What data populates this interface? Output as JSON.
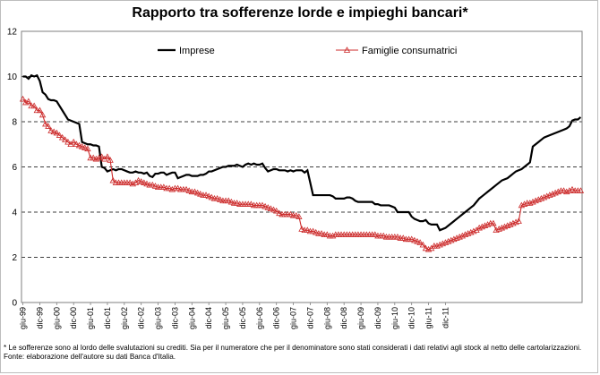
{
  "chart_data": {
    "type": "line",
    "title": "Rapporto tra sofferenze lorde e impieghi bancari*",
    "xlabel": "",
    "ylabel": "",
    "ylim": [
      0,
      12
    ],
    "yticks": [
      0,
      2,
      4,
      6,
      8,
      10,
      12
    ],
    "grid": "horizontal-dashed",
    "legend_position": "top",
    "x_tick_labels": [
      "giu-99",
      "dic-99",
      "giu-00",
      "dic-00",
      "giu-01",
      "dic-01",
      "giu-02",
      "dic-02",
      "giu-03",
      "dic-03",
      "giu-04",
      "dic-04",
      "giu-05",
      "dic-05",
      "giu-06",
      "dic-06",
      "giu-07",
      "dic-07",
      "giu-08",
      "dic-08",
      "giu-09",
      "dic-09",
      "giu-10",
      "dic-10",
      "giu-11",
      "dic-11"
    ],
    "x_months": {
      "start": "giu-99",
      "end": "mar-12"
    },
    "series": [
      {
        "name": "Imprese",
        "color": "#000000",
        "marker": "none",
        "values": [
          10.0,
          10.0,
          9.9,
          10.05,
          10.0,
          10.05,
          9.8,
          9.3,
          9.2,
          9.0,
          8.95,
          8.95,
          8.9,
          8.7,
          8.5,
          8.3,
          8.1,
          8.05,
          8.0,
          7.95,
          7.9,
          7.1,
          7.05,
          7.0,
          7.0,
          6.95,
          6.95,
          6.9,
          6.0,
          5.95,
          5.8,
          5.85,
          5.9,
          5.85,
          5.9,
          5.9,
          5.85,
          5.8,
          5.75,
          5.75,
          5.8,
          5.75,
          5.75,
          5.7,
          5.75,
          5.6,
          5.55,
          5.7,
          5.7,
          5.75,
          5.75,
          5.65,
          5.7,
          5.75,
          5.75,
          5.5,
          5.55,
          5.6,
          5.65,
          5.65,
          5.6,
          5.6,
          5.6,
          5.65,
          5.65,
          5.7,
          5.8,
          5.8,
          5.85,
          5.9,
          5.95,
          6.0,
          6.0,
          6.05,
          6.05,
          6.05,
          6.1,
          6.05,
          6.0,
          6.1,
          6.15,
          6.1,
          6.15,
          6.1,
          6.1,
          6.15,
          5.95,
          5.8,
          5.85,
          5.9,
          5.9,
          5.85,
          5.85,
          5.85,
          5.8,
          5.85,
          5.8,
          5.85,
          5.85,
          5.85,
          5.75,
          5.85,
          5.3,
          4.75,
          4.75,
          4.75,
          4.75,
          4.75,
          4.75,
          4.75,
          4.7,
          4.6,
          4.6,
          4.6,
          4.6,
          4.65,
          4.65,
          4.6,
          4.5,
          4.45,
          4.45,
          4.45,
          4.45,
          4.45,
          4.45,
          4.35,
          4.35,
          4.3,
          4.3,
          4.3,
          4.3,
          4.25,
          4.2,
          4.0,
          4.0,
          4.0,
          4.0,
          4.0,
          3.8,
          3.7,
          3.65,
          3.6,
          3.6,
          3.65,
          3.5,
          3.45,
          3.45,
          3.45,
          3.2,
          3.25,
          3.3,
          3.4,
          3.5,
          3.6,
          3.7,
          3.8,
          3.9,
          4.0,
          4.1,
          4.2,
          4.3,
          4.45,
          4.6,
          4.7,
          4.8,
          4.9,
          5.0,
          5.1,
          5.2,
          5.3,
          5.4,
          5.45,
          5.5,
          5.6,
          5.7,
          5.8,
          5.85,
          5.9,
          6.0,
          6.1,
          6.2,
          6.9,
          7.0,
          7.1,
          7.2,
          7.3,
          7.35,
          7.4,
          7.45,
          7.5,
          7.55,
          7.6,
          7.65,
          7.7,
          7.8,
          8.05,
          8.1,
          8.1,
          8.2
        ]
      },
      {
        "name": "Famiglie consumatrici",
        "color": "#cc2a2a",
        "marker": "open-triangle",
        "values": [
          9.0,
          8.85,
          8.9,
          8.7,
          8.7,
          8.5,
          8.5,
          8.3,
          7.9,
          7.8,
          7.6,
          7.55,
          7.5,
          7.4,
          7.3,
          7.2,
          7.1,
          7.0,
          7.1,
          7.0,
          6.95,
          6.9,
          6.85,
          6.8,
          6.4,
          6.4,
          6.35,
          6.4,
          6.45,
          6.35,
          6.45,
          6.3,
          5.4,
          5.3,
          5.3,
          5.3,
          5.3,
          5.3,
          5.3,
          5.25,
          5.3,
          5.4,
          5.35,
          5.3,
          5.25,
          5.2,
          5.2,
          5.15,
          5.1,
          5.1,
          5.1,
          5.05,
          5.05,
          5.0,
          5.05,
          5.05,
          5.0,
          5.0,
          5.0,
          4.95,
          4.9,
          4.9,
          4.85,
          4.8,
          4.75,
          4.75,
          4.7,
          4.65,
          4.6,
          4.6,
          4.55,
          4.5,
          4.5,
          4.5,
          4.45,
          4.4,
          4.4,
          4.35,
          4.35,
          4.35,
          4.35,
          4.35,
          4.3,
          4.3,
          4.3,
          4.3,
          4.25,
          4.2,
          4.15,
          4.1,
          4.05,
          3.95,
          3.9,
          3.9,
          3.9,
          3.9,
          3.85,
          3.85,
          3.8,
          3.25,
          3.2,
          3.2,
          3.15,
          3.15,
          3.1,
          3.05,
          3.05,
          3.0,
          3.0,
          2.95,
          2.95,
          3.0,
          3.0,
          3.0,
          3.0,
          3.0,
          3.0,
          3.0,
          3.0,
          3.0,
          3.0,
          3.0,
          3.0,
          3.0,
          3.0,
          3.0,
          2.95,
          2.95,
          2.95,
          2.9,
          2.9,
          2.9,
          2.9,
          2.9,
          2.85,
          2.85,
          2.8,
          2.8,
          2.8,
          2.75,
          2.7,
          2.65,
          2.55,
          2.4,
          2.35,
          2.4,
          2.5,
          2.5,
          2.55,
          2.6,
          2.65,
          2.7,
          2.75,
          2.8,
          2.85,
          2.9,
          2.95,
          3.0,
          3.05,
          3.1,
          3.15,
          3.2,
          3.3,
          3.35,
          3.4,
          3.45,
          3.5,
          3.5,
          3.2,
          3.25,
          3.3,
          3.35,
          3.4,
          3.45,
          3.5,
          3.55,
          3.6,
          4.3,
          4.35,
          4.4,
          4.4,
          4.45,
          4.5,
          4.55,
          4.6,
          4.65,
          4.7,
          4.75,
          4.8,
          4.85,
          4.9,
          4.95,
          4.95,
          4.9,
          4.95,
          5.0,
          4.95,
          4.95,
          4.95
        ]
      }
    ]
  },
  "footnotes": {
    "note": "* Le sofferenze sono al lordo delle svalutazioni su crediti. Sia per il numeratore che per il denominatore sono stati considerati i dati relativi agli stock al netto delle cartolarizzazioni.",
    "source": "Fonte: elaborazione dell'autore su dati Banca d'Italia."
  },
  "colors": {
    "gridline": "#000000",
    "axis": "#7f7f7f"
  }
}
